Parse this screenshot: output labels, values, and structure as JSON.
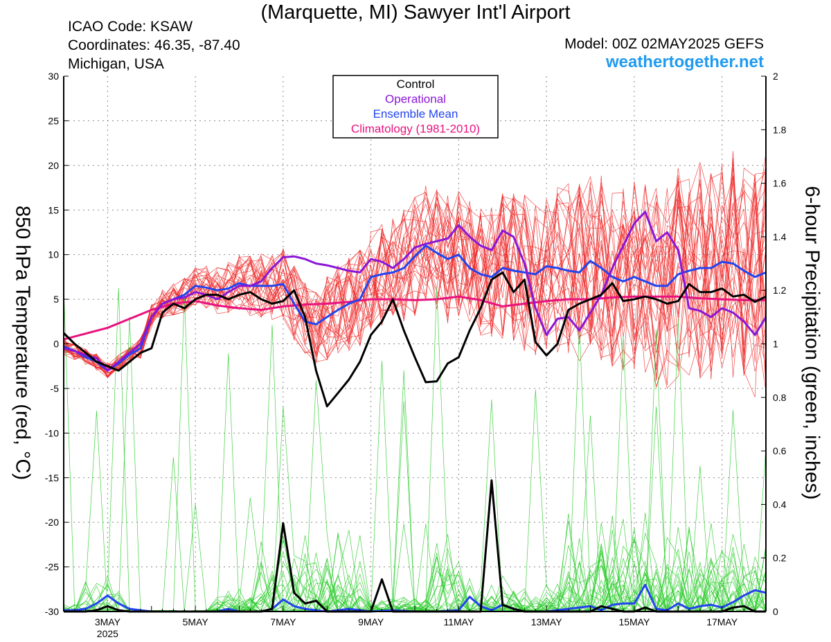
{
  "header": {
    "title": "(Marquette, MI) Sawyer Int'l Airport",
    "icao": "ICAO Code: KSAW",
    "coordinates": "Coordinates: 46.35, -87.40",
    "region": "Michigan, USA",
    "model": "Model: 00Z 02MAY2025 GEFS",
    "brand": "weathertogether.net"
  },
  "chart_data": {
    "type": "line",
    "ylabel": "850 hPa Temperature (red, °C)",
    "ylabel_right": "6-hour Precipitation (green, inches)",
    "ylim": [
      -30,
      30
    ],
    "ylim_right": [
      0,
      2
    ],
    "xlim": [
      2.0,
      18.0
    ],
    "y_ticks": [
      "30",
      "25",
      "20",
      "15",
      "10",
      "5",
      "0",
      "-5",
      "-10",
      "-15",
      "-20",
      "-25",
      "-30"
    ],
    "y_ticks_right": [
      "2",
      "1.8",
      "1.6",
      "1.4",
      "1.2",
      "1",
      "0.8",
      "0.6",
      "0.4",
      "0.2",
      "0"
    ],
    "x_ticks": [
      {
        "x": 3.0,
        "label": "3MAY",
        "sub": "2025"
      },
      {
        "x": 5.0,
        "label": "5MAY",
        "sub": ""
      },
      {
        "x": 7.0,
        "label": "7MAY",
        "sub": ""
      },
      {
        "x": 9.0,
        "label": "9MAY",
        "sub": ""
      },
      {
        "x": 11.0,
        "label": "11MAY",
        "sub": ""
      },
      {
        "x": 13.0,
        "label": "13MAY",
        "sub": ""
      },
      {
        "x": 15.0,
        "label": "15MAY",
        "sub": ""
      },
      {
        "x": 17.0,
        "label": "17MAY",
        "sub": ""
      }
    ],
    "grid": true,
    "legend": {
      "position": "top-center",
      "entries": [
        {
          "name": "Control",
          "color": "#000000"
        },
        {
          "name": "Operational",
          "color": "#8a16d6"
        },
        {
          "name": "Ensemble Mean",
          "color": "#2244ee"
        },
        {
          "name": "Climatology (1981-2010)",
          "color": "#e8127e"
        }
      ]
    },
    "temperature": {
      "control": {
        "color": "#000000",
        "x": [
          2.0,
          2.25,
          2.5,
          2.75,
          3.0,
          3.25,
          3.5,
          3.75,
          4.0,
          4.25,
          4.5,
          4.75,
          5.0,
          5.25,
          5.5,
          5.75,
          6.0,
          6.25,
          6.5,
          6.75,
          7.0,
          7.25,
          7.5,
          7.75,
          8.0,
          8.25,
          8.5,
          8.75,
          9.0,
          9.25,
          9.5,
          9.75,
          10.0,
          10.25,
          10.5,
          10.75,
          11.0,
          11.25,
          11.5,
          11.75,
          12.0,
          12.25,
          12.5,
          12.75,
          13.0,
          13.25,
          13.5,
          13.75,
          14.0,
          14.25,
          14.5,
          14.75,
          15.0,
          15.25,
          15.5,
          15.75,
          16.0,
          16.25,
          16.5,
          16.75,
          17.0,
          17.25,
          17.5,
          17.75,
          18.0
        ],
        "y": [
          1.2,
          0.0,
          -1.0,
          -2.0,
          -2.5,
          -3.0,
          -2.0,
          -1.0,
          -0.5,
          3.5,
          4.5,
          4.0,
          5.0,
          5.5,
          5.5,
          5.0,
          5.5,
          5.8,
          5.0,
          4.5,
          4.8,
          6.0,
          3.0,
          -3.0,
          -7.0,
          -5.5,
          -4.0,
          -2.0,
          1.0,
          2.5,
          5.0,
          1.5,
          -1.5,
          -4.3,
          -4.2,
          -2.2,
          -1.5,
          1.5,
          4.0,
          7.2,
          8.0,
          5.8,
          7.2,
          0.2,
          -1.3,
          0.0,
          3.8,
          4.5,
          5.0,
          5.5,
          6.8,
          4.8,
          5.0,
          5.3,
          5.0,
          4.5,
          4.8,
          6.7,
          5.8,
          5.8,
          6.2,
          5.3,
          5.5,
          4.7,
          5.3
        ]
      },
      "operational": {
        "color": "#8a16d6",
        "x": [
          2.0,
          2.25,
          2.5,
          2.75,
          3.0,
          3.25,
          3.5,
          3.75,
          4.0,
          4.25,
          4.5,
          4.75,
          5.0,
          5.25,
          5.5,
          5.75,
          6.0,
          6.25,
          6.5,
          6.75,
          7.0,
          7.25,
          7.5,
          7.75,
          8.0,
          8.25,
          8.5,
          8.75,
          9.0,
          9.25,
          9.5,
          9.75,
          10.0,
          10.25,
          10.5,
          10.75,
          11.0,
          11.25,
          11.5,
          11.75,
          12.0,
          12.25,
          12.5,
          12.75,
          13.0,
          13.25,
          13.5,
          13.75,
          14.0,
          14.25,
          14.5,
          14.75,
          15.0,
          15.25,
          15.5,
          15.75,
          16.0,
          16.25,
          16.5,
          16.75,
          17.0,
          17.25,
          17.5,
          17.75,
          18.0
        ],
        "y": [
          -0.5,
          -0.8,
          -1.3,
          -1.6,
          -3.0,
          -2.0,
          -1.0,
          0.0,
          3.0,
          4.5,
          5.0,
          5.2,
          5.8,
          5.5,
          5.0,
          5.8,
          6.5,
          6.5,
          7.0,
          8.5,
          9.7,
          9.8,
          9.5,
          9.0,
          8.8,
          8.5,
          8.2,
          8.0,
          9.5,
          9.2,
          8.5,
          9.5,
          10.8,
          11.2,
          11.5,
          11.8,
          13.3,
          12.0,
          11.0,
          10.5,
          12.7,
          12.0,
          9.0,
          4.0,
          1.0,
          2.8,
          3.0,
          1.5,
          3.5,
          5.5,
          8.5,
          11.0,
          13.5,
          14.8,
          11.5,
          12.5,
          10.5,
          4.0,
          3.7,
          3.0,
          4.0,
          3.5,
          2.5,
          1.0,
          3.0
        ]
      },
      "ensemble_mean": {
        "color": "#2244ee",
        "x": [
          2.0,
          2.25,
          2.5,
          2.75,
          3.0,
          3.25,
          3.5,
          3.75,
          4.0,
          4.25,
          4.5,
          4.75,
          5.0,
          5.25,
          5.5,
          5.75,
          6.0,
          6.25,
          6.5,
          6.75,
          7.0,
          7.25,
          7.5,
          7.75,
          8.0,
          8.25,
          8.5,
          8.75,
          9.0,
          9.25,
          9.5,
          9.75,
          10.0,
          10.25,
          10.5,
          10.75,
          11.0,
          11.25,
          11.5,
          11.75,
          12.0,
          12.25,
          12.5,
          12.75,
          13.0,
          13.25,
          13.5,
          13.75,
          14.0,
          14.25,
          14.5,
          14.75,
          15.0,
          15.25,
          15.5,
          15.75,
          16.0,
          16.25,
          16.5,
          16.75,
          17.0,
          17.25,
          17.5,
          17.75,
          18.0
        ],
        "y": [
          -0.3,
          -0.8,
          -1.5,
          -2.0,
          -3.0,
          -2.2,
          -1.2,
          -0.5,
          3.0,
          4.5,
          5.0,
          5.5,
          6.5,
          6.3,
          6.0,
          6.2,
          6.8,
          6.5,
          6.5,
          6.5,
          6.7,
          4.5,
          2.5,
          2.2,
          3.0,
          3.8,
          4.5,
          5.0,
          7.5,
          7.8,
          8.0,
          8.5,
          9.8,
          11.0,
          10.2,
          9.5,
          10.0,
          8.5,
          7.8,
          7.5,
          8.5,
          8.2,
          8.0,
          7.8,
          8.7,
          8.5,
          8.2,
          8.0,
          9.3,
          8.5,
          7.5,
          7.0,
          7.5,
          7.0,
          6.5,
          6.5,
          7.8,
          8.2,
          8.5,
          8.5,
          9.2,
          9.0,
          8.2,
          7.5,
          8.0
        ]
      },
      "climatology": {
        "color": "#e8127e",
        "x": [
          2.0,
          3.0,
          4.0,
          4.5,
          5.0,
          5.5,
          6.0,
          6.5,
          7.0,
          7.5,
          8.0,
          8.5,
          9.0,
          9.5,
          10.0,
          10.5,
          11.0,
          11.5,
          12.0,
          12.5,
          13.0,
          13.5,
          14.0,
          14.5,
          15.0,
          15.5,
          16.0,
          16.5,
          17.0,
          17.5,
          18.0
        ],
        "y": [
          0.5,
          1.8,
          3.8,
          4.5,
          4.8,
          4.3,
          4.0,
          3.8,
          4.2,
          4.4,
          4.5,
          4.7,
          5.0,
          5.0,
          4.9,
          5.0,
          5.3,
          4.9,
          4.2,
          4.5,
          4.8,
          5.0,
          5.0,
          5.2,
          5.3,
          5.3,
          5.3,
          5.1,
          5.0,
          4.9,
          4.9
        ]
      }
    },
    "precipitation": {
      "control": {
        "color": "#000000",
        "x": [
          2.0,
          2.5,
          2.75,
          3.0,
          3.25,
          3.5,
          4.0,
          6.5,
          6.75,
          7.0,
          7.25,
          7.5,
          7.75,
          8.0,
          8.25,
          8.5,
          9.0,
          9.25,
          9.5,
          10.0,
          11.0,
          11.5,
          11.75,
          12.0,
          12.25,
          12.5,
          14.0,
          14.25,
          14.5,
          14.75,
          15.0,
          15.25,
          15.5,
          15.75,
          16.0,
          16.25,
          16.5,
          16.75,
          17.0,
          17.25,
          17.5,
          17.75,
          18.0
        ],
        "y": [
          0.0,
          0.0,
          0.005,
          0.02,
          0.005,
          0.0,
          0.0,
          0.0,
          0.01,
          0.33,
          0.07,
          0.03,
          0.04,
          0.0,
          0.0,
          0.0,
          0.0,
          0.12,
          0.0,
          0.0,
          0.0,
          0.0,
          0.49,
          0.025,
          0.01,
          0.0,
          0.0,
          0.02,
          0.01,
          0.0,
          0.0,
          0.015,
          0.0,
          0.0,
          0.0,
          0.0,
          0.0,
          0.0,
          0.0,
          0.015,
          0.02,
          0.0,
          0.0
        ]
      },
      "ensemble_mean": {
        "color": "#2244ee",
        "x": [
          2.0,
          2.25,
          2.5,
          2.75,
          3.0,
          3.25,
          3.5,
          3.75,
          4.0,
          5.0,
          5.5,
          5.75,
          6.0,
          6.25,
          6.5,
          6.75,
          7.0,
          7.25,
          7.5,
          7.75,
          8.0,
          8.25,
          8.5,
          9.0,
          9.5,
          10.0,
          10.5,
          11.0,
          11.25,
          11.5,
          11.75,
          12.0,
          12.25,
          12.5,
          13.0,
          13.5,
          13.75,
          14.0,
          14.25,
          14.5,
          14.75,
          15.0,
          15.25,
          15.5,
          15.75,
          16.0,
          16.25,
          16.5,
          16.75,
          17.0,
          17.25,
          17.5,
          17.75,
          18.0
        ],
        "y": [
          0.005,
          0.005,
          0.01,
          0.03,
          0.06,
          0.03,
          0.01,
          0.005,
          0.0,
          0.0,
          0.0,
          0.01,
          0.0,
          0.0,
          0.0,
          0.01,
          0.045,
          0.02,
          0.01,
          0.005,
          0.0,
          0.005,
          0.01,
          0.0,
          0.005,
          0.0,
          0.0,
          0.005,
          0.055,
          0.02,
          0.005,
          0.025,
          0.01,
          0.0,
          0.0,
          0.01,
          0.015,
          0.02,
          0.005,
          0.025,
          0.03,
          0.03,
          0.1,
          0.01,
          0.005,
          0.03,
          0.01,
          0.02,
          0.025,
          0.015,
          0.035,
          0.06,
          0.08,
          0.07
        ]
      }
    }
  }
}
